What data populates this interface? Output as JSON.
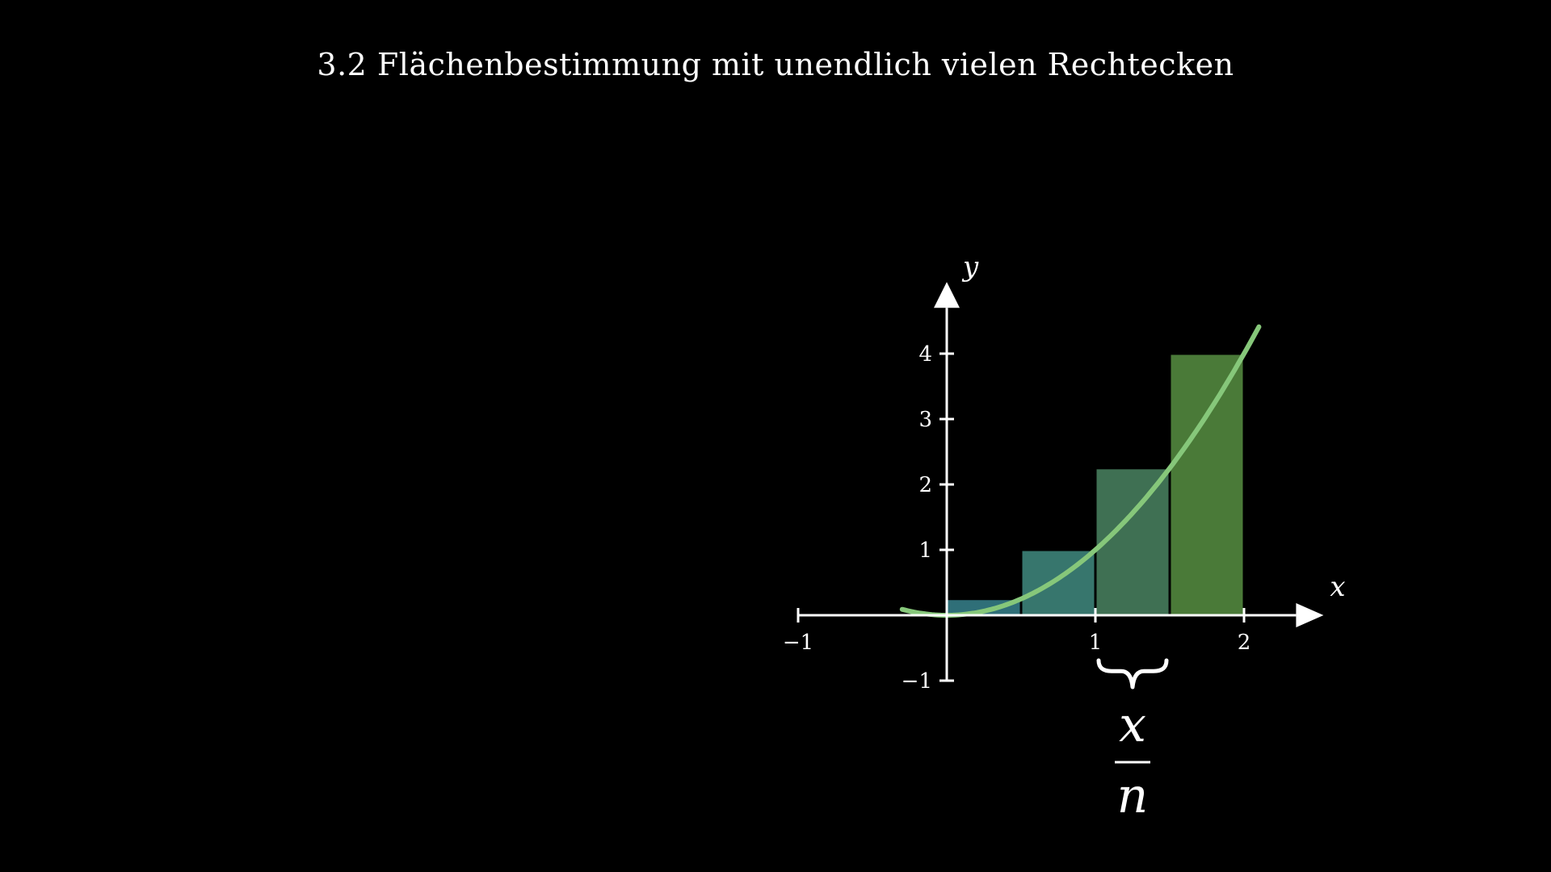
{
  "title": "3.2 Flächenbestimmung mit unendlich vielen Rechtecken",
  "axes": {
    "x_label": "x",
    "y_label": "y",
    "x_ticks": [
      {
        "value": -1,
        "label": "−1"
      },
      {
        "value": 1,
        "label": "1"
      },
      {
        "value": 2,
        "label": "2"
      }
    ],
    "y_ticks": [
      {
        "value": -1,
        "label": "−1"
      },
      {
        "value": 1,
        "label": "1"
      },
      {
        "value": 2,
        "label": "2"
      },
      {
        "value": 3,
        "label": "3"
      },
      {
        "value": 4,
        "label": "4"
      }
    ],
    "x_range": [
      -1,
      2.5
    ],
    "y_range": [
      -1,
      4.5
    ]
  },
  "curve": {
    "function": "x^2",
    "x_range": [
      -0.3,
      2.1
    ],
    "color": "#86c77a"
  },
  "rectangles": {
    "width": 0.5,
    "items": [
      {
        "x": 0.0,
        "height": 0.25,
        "color": "#2f6f78"
      },
      {
        "x": 0.5,
        "height": 1.0,
        "color": "#37766d"
      },
      {
        "x": 1.0,
        "height": 2.25,
        "color": "#3f7053"
      },
      {
        "x": 1.5,
        "height": 4.0,
        "color": "#4a7a38"
      }
    ],
    "outline_color": "#000000"
  },
  "brace": {
    "from": 1.0,
    "to": 1.5,
    "numerator": "x",
    "denominator": "n"
  },
  "colors": {
    "background": "#000000",
    "axis": "#ffffff",
    "text": "#ffffff"
  }
}
